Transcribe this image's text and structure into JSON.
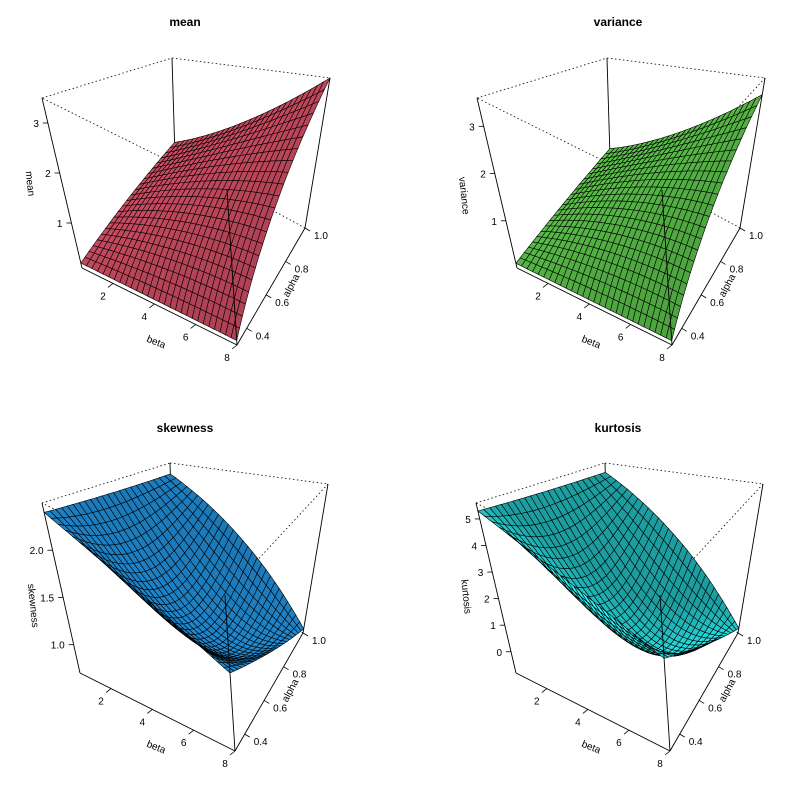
{
  "chart_data": [
    {
      "type": "surface",
      "title": "mean",
      "xlabel": "beta",
      "ylabel": "alpha",
      "zlabel": "mean",
      "color": "#DF536B",
      "xlim": [
        0.5,
        8
      ],
      "ylim": [
        0.3,
        1.0
      ],
      "zlim": [
        0.1,
        3.5
      ],
      "xticks": [
        "2",
        "4",
        "6",
        "8"
      ],
      "xtick_values": [
        2,
        4,
        6,
        8
      ],
      "yticks": [
        "0.4",
        "0.6",
        "0.8",
        "1.0"
      ],
      "ytick_values": [
        0.4,
        0.6,
        0.8,
        1.0
      ],
      "zticks": [
        "1",
        "2",
        "3"
      ],
      "zy_values": [
        1,
        2,
        3
      ],
      "zcorners": [
        0.2,
        0.2,
        3.5,
        0.6
      ],
      "zmid": 1.35
    },
    {
      "type": "surface",
      "title": "variance",
      "xlabel": "beta",
      "ylabel": "alpha",
      "zlabel": "variance",
      "color": "#61D04F",
      "xlim": [
        0.5,
        8
      ],
      "ylim": [
        0.3,
        1.0
      ],
      "zlim": [
        0.0,
        3.6
      ],
      "xticks": [
        "2",
        "4",
        "6",
        "8"
      ],
      "xtick_values": [
        2,
        4,
        6,
        8
      ],
      "yticks": [
        "0.4",
        "0.6",
        "0.8",
        "1.0"
      ],
      "ytick_values": [
        0.4,
        0.6,
        0.8,
        1.0
      ],
      "zticks": [
        "1",
        "2",
        "3"
      ],
      "zy_values": [
        1,
        2,
        3
      ],
      "zcorners": [
        0.1,
        0.1,
        3.2,
        0.3
      ],
      "zmid": 1.2
    },
    {
      "type": "surface",
      "title": "skewness",
      "xlabel": "beta",
      "ylabel": "alpha",
      "zlabel": "skewness",
      "color": "#2297E6",
      "xlim": [
        0.5,
        8
      ],
      "ylim": [
        0.3,
        1.0
      ],
      "zlim": [
        0.7,
        2.5
      ],
      "xticks": [
        "2",
        "4",
        "6",
        "8"
      ],
      "xtick_values": [
        2,
        4,
        6,
        8
      ],
      "yticks": [
        "0.4",
        "0.6",
        "0.8",
        "1.0"
      ],
      "ytick_values": [
        0.4,
        0.6,
        0.8,
        1.0
      ],
      "zticks": [
        "1.0",
        "1.5",
        "2.0"
      ],
      "zy_values": [
        1.0,
        1.5,
        2.0
      ],
      "zcorners": [
        2.4,
        1.6,
        0.75,
        2.3
      ],
      "zmid": 1.15
    },
    {
      "type": "surface",
      "title": "kurtosis",
      "xlabel": "beta",
      "ylabel": "alpha",
      "zlabel": "kurtosis",
      "color": "#28E2E5",
      "xlim": [
        0.5,
        8
      ],
      "ylim": [
        0.3,
        1.0
      ],
      "zlim": [
        -0.8,
        5.6
      ],
      "xticks": [
        "2",
        "4",
        "6",
        "8"
      ],
      "xtick_values": [
        2,
        4,
        6,
        8
      ],
      "yticks": [
        "0.4",
        "0.6",
        "0.8",
        "1.0"
      ],
      "ytick_values": [
        0.4,
        0.6,
        0.8,
        1.0
      ],
      "zticks": [
        "0",
        "1",
        "2",
        "3",
        "4",
        "5"
      ],
      "zy_values": [
        0,
        1,
        2,
        3,
        4,
        5
      ],
      "zcorners": [
        5.3,
        3.0,
        -0.6,
        5.0
      ],
      "zmid": 0.4
    }
  ]
}
